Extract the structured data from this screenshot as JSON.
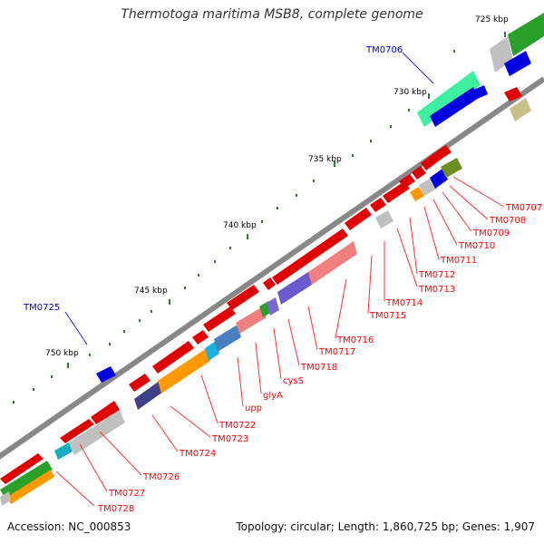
{
  "title": "Thermotoga maritima MSB8, complete genome",
  "footer": {
    "accession": "Accession: NC_000853",
    "summary": "Topology: circular; Length: 1,860,725 bp; Genes: 1,907"
  },
  "colors": {
    "backbone": "#888888",
    "gene_red": "#ff0000",
    "label_red": "#ff0000",
    "label_blue": "#0000cc",
    "tick_green": "#2a7d2a"
  },
  "scale_labels": [
    "725 kbp",
    "730 kbp",
    "735 kbp",
    "740 kbp",
    "745 kbp",
    "750 kbp"
  ],
  "gene_labels_blue": [
    "TM0706",
    "TM0725"
  ],
  "gene_labels_red": [
    "TM0707",
    "TM0708",
    "TM0709",
    "TM0710",
    "TM0711",
    "TM0712",
    "TM0713",
    "TM0714",
    "TM0715",
    "TM0716",
    "TM0717",
    "TM0718",
    "cysS",
    "glyA",
    "upp",
    "TM0722",
    "TM0723",
    "TM0724",
    "TM0726",
    "TM0727",
    "TM0728"
  ]
}
